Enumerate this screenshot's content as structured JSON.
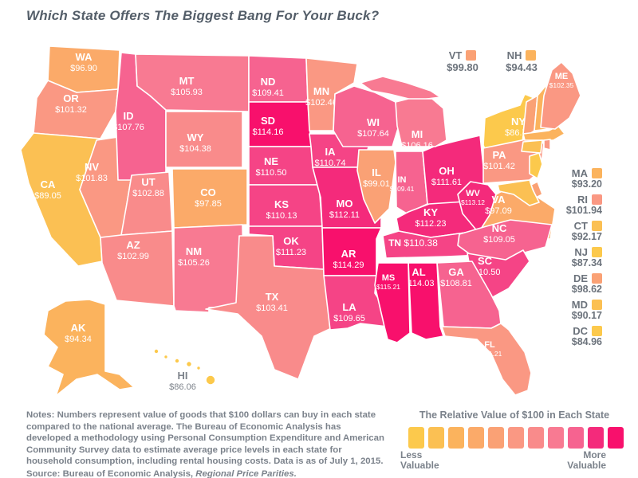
{
  "title": "Which State Offers The Biggest Bang For Your Buck?",
  "map": {
    "states": [
      {
        "id": "WA",
        "value": "$96.90",
        "color": "#FBAA69"
      },
      {
        "id": "OR",
        "value": "$101.32",
        "color": "#FA9883"
      },
      {
        "id": "CA",
        "value": "$89.05",
        "color": "#FBC053"
      },
      {
        "id": "NV",
        "value": "$101.83",
        "color": "#FA9883"
      },
      {
        "id": "ID",
        "value": "$107.76",
        "color": "#F66390"
      },
      {
        "id": "MT",
        "value": "$105.93",
        "color": "#F87A92"
      },
      {
        "id": "WY",
        "value": "$104.38",
        "color": "#F98B8B"
      },
      {
        "id": "UT",
        "value": "$102.88",
        "color": "#F98B8B"
      },
      {
        "id": "CO",
        "value": "$97.85",
        "color": "#FBAA69"
      },
      {
        "id": "AZ",
        "value": "$102.99",
        "color": "#F98B8B"
      },
      {
        "id": "NM",
        "value": "$105.26",
        "color": "#F87A92"
      },
      {
        "id": "ND",
        "value": "$109.41",
        "color": "#F66390"
      },
      {
        "id": "SD",
        "value": "$114.16",
        "color": "#F8106C"
      },
      {
        "id": "NE",
        "value": "$110.50",
        "color": "#F54486"
      },
      {
        "id": "KS",
        "value": "$110.13",
        "color": "#F54486"
      },
      {
        "id": "OK",
        "value": "$111.23",
        "color": "#F54486"
      },
      {
        "id": "TX",
        "value": "$103.41",
        "color": "#F98B8B"
      },
      {
        "id": "MN",
        "value": "$102.46",
        "color": "#FA9883"
      },
      {
        "id": "IA",
        "value": "$110.74",
        "color": "#F54486"
      },
      {
        "id": "MO",
        "value": "$112.11",
        "color": "#F42A7B"
      },
      {
        "id": "AR",
        "value": "$114.29",
        "color": "#F8106C"
      },
      {
        "id": "LA",
        "value": "$109.65",
        "color": "#F54486"
      },
      {
        "id": "WI",
        "value": "$107.64",
        "color": "#F66390"
      },
      {
        "id": "IL",
        "value": "$99.01",
        "color": "#FAA175"
      },
      {
        "id": "IN",
        "value": "$109.41",
        "color": "#F66390"
      },
      {
        "id": "OH",
        "value": "$111.61",
        "color": "#F42A7B"
      },
      {
        "id": "MI",
        "value": "$106.16",
        "color": "#F87A92"
      },
      {
        "id": "KY",
        "value": "$112.23",
        "color": "#F42A7B"
      },
      {
        "id": "TN",
        "value": "$110.38",
        "color": "#F54486"
      },
      {
        "id": "WV",
        "value": "$113.12",
        "color": "#F42A7B"
      },
      {
        "id": "VA",
        "value": "$97.09",
        "color": "#FBAA69"
      },
      {
        "id": "NC",
        "value": "$109.05",
        "color": "#F66390"
      },
      {
        "id": "SC",
        "value": "$110.50",
        "color": "#F54486"
      },
      {
        "id": "GA",
        "value": "$108.81",
        "color": "#F66390"
      },
      {
        "id": "AL",
        "value": "$114.03",
        "color": "#F8106C"
      },
      {
        "id": "MS",
        "value": "$115.21",
        "color": "#F8106C"
      },
      {
        "id": "FL",
        "value": "$101.21",
        "color": "#FA9883"
      },
      {
        "id": "NY",
        "value": "$86.73",
        "color": "#FCC94C"
      },
      {
        "id": "PA",
        "value": "$101.42",
        "color": "#FA9883"
      },
      {
        "id": "NJ",
        "value": "$87.34",
        "color": "#FCC94C"
      },
      {
        "id": "DE",
        "value": "$98.62",
        "color": "#FAA175"
      },
      {
        "id": "MD",
        "value": "$90.17",
        "color": "#FBC053"
      },
      {
        "id": "VT",
        "value": "$99.80",
        "color": "#FAA175"
      },
      {
        "id": "NH",
        "value": "$94.43",
        "color": "#FBB35D"
      },
      {
        "id": "MA",
        "value": "$93.20",
        "color": "#FBB35D"
      },
      {
        "id": "CT",
        "value": "$92.17",
        "color": "#FBC053"
      },
      {
        "id": "RI",
        "value": "$101.94",
        "color": "#FA9883"
      },
      {
        "id": "ME",
        "value": "$102.35",
        "color": "#FA9883"
      },
      {
        "id": "AK",
        "value": "$94.34",
        "color": "#FBB35D"
      },
      {
        "id": "HI",
        "value": "$86.06",
        "color": "#FCC94C"
      }
    ],
    "top_callouts": [
      {
        "id": "VT",
        "value": "$99.80",
        "color": "#FAA175"
      },
      {
        "id": "NH",
        "value": "$94.43",
        "color": "#FBB35D"
      }
    ],
    "east_list": [
      {
        "id": "MA",
        "value": "$93.20",
        "color": "#FBB35D"
      },
      {
        "id": "RI",
        "value": "$101.94",
        "color": "#FA9883"
      },
      {
        "id": "CT",
        "value": "$92.17",
        "color": "#FBC053"
      },
      {
        "id": "NJ",
        "value": "$87.34",
        "color": "#FCC94C"
      },
      {
        "id": "DE",
        "value": "$98.62",
        "color": "#FAA175"
      },
      {
        "id": "MD",
        "value": "$90.17",
        "color": "#FBC053"
      },
      {
        "id": "DC",
        "value": "$84.96",
        "color": "#FCC94C"
      }
    ]
  },
  "notes": {
    "body": "Notes: Numbers represent value of goods that $100 dollars can buy in each state compared to the national average. The Bureau of Economic Analysis has developed a methodology using Personal Consumption Expenditure and American Community Survey data to estimate average price levels in each state for household consumption, including rental housing costs. Data is as of July 1, 2015.",
    "source_prefix": "Source: Bureau of Economic Analysis, ",
    "source_title": "Regional Price Parities."
  },
  "legend": {
    "title": "The Relative Value of $100 in Each State",
    "less_label": "Less Valuable",
    "more_label": "More Valuable",
    "colors": [
      "#FCC94C",
      "#FBC053",
      "#FBB35D",
      "#FBAA69",
      "#FAA175",
      "#FA9883",
      "#F98B8B",
      "#F87A92",
      "#F66390",
      "#F42A7B",
      "#F8106C"
    ]
  }
}
